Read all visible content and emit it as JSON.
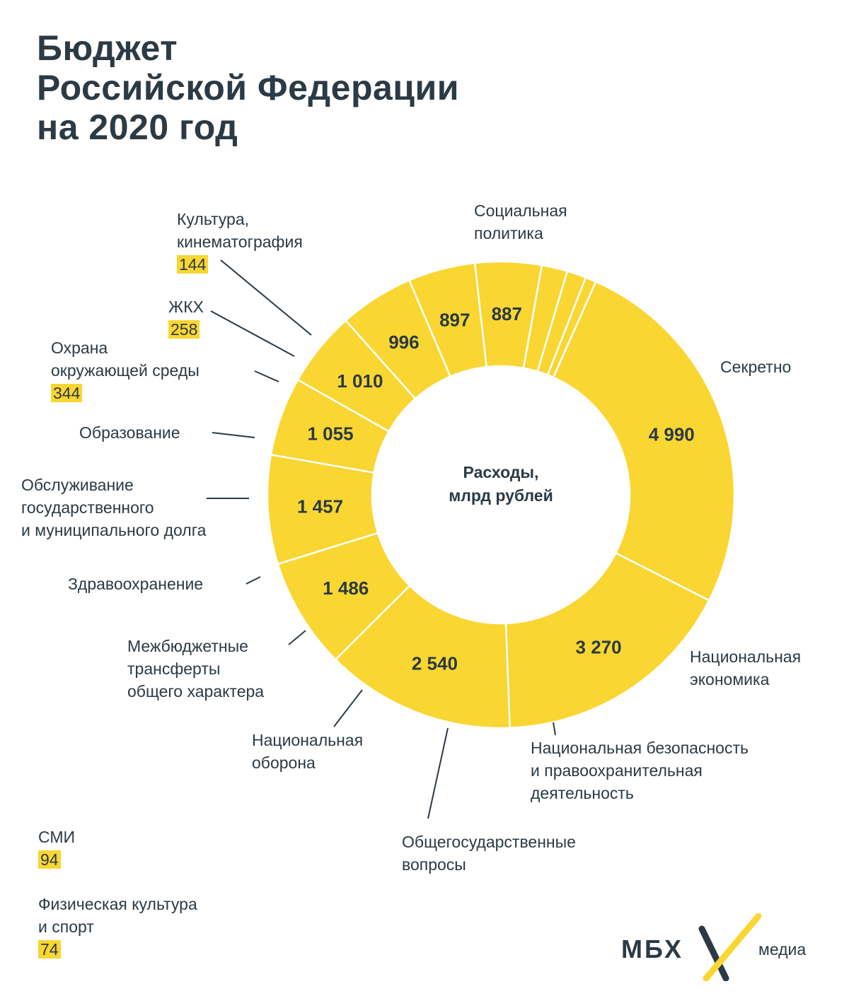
{
  "title": {
    "line1": "Бюджет",
    "line2": "Российской Федерации",
    "line3": "на 2020 год"
  },
  "chart_data": {
    "type": "pie",
    "center_label": "Расходы,\nмлрд рублей",
    "segment_color": "#f9d632",
    "separator_color": "#ffffff",
    "text_color": "#2b3a44",
    "segments": [
      {
        "name": "Социальная\nполитика",
        "value": 4990,
        "value_label": "4 990"
      },
      {
        "name": "Секретно",
        "value": 3270,
        "value_label": "3 270"
      },
      {
        "name": "Национальная\nэкономика",
        "value": 2540,
        "value_label": "2 540"
      },
      {
        "name": "Национальная безопасность\nи правоохранительная\nдеятельность",
        "value": 1486,
        "value_label": "1 486"
      },
      {
        "name": "Общегосударственные\nвопросы",
        "value": 1457,
        "value_label": "1 457"
      },
      {
        "name": "Национальная\nоборона",
        "value": 1055,
        "value_label": "1 055"
      },
      {
        "name": "Межбюджетные\nтрансферты\nобщего характера",
        "value": 1010,
        "value_label": "1 010"
      },
      {
        "name": "Здравоохранение",
        "value": 996,
        "value_label": "996"
      },
      {
        "name": "Обслуживание\nгосударственного\nи муниципального долга",
        "value": 897,
        "value_label": "897"
      },
      {
        "name": "Образование",
        "value": 887,
        "value_label": "887"
      },
      {
        "name": "Охрана\nокружающей среды",
        "value": 344,
        "value_label": "344"
      },
      {
        "name": "ЖКХ",
        "value": 258,
        "value_label": "258"
      },
      {
        "name": "Культура,\nкинематография",
        "value": 144,
        "value_label": "144"
      }
    ],
    "outside_items": [
      {
        "name": "СМИ",
        "value": 94,
        "value_label": "94"
      },
      {
        "name": "Физическая культура\nи спорт",
        "value": 74,
        "value_label": "74"
      }
    ]
  },
  "logo": {
    "brand": "МБХ",
    "suffix": "медиа",
    "icon": "x-mark-icon",
    "accent": "#f9d632"
  }
}
